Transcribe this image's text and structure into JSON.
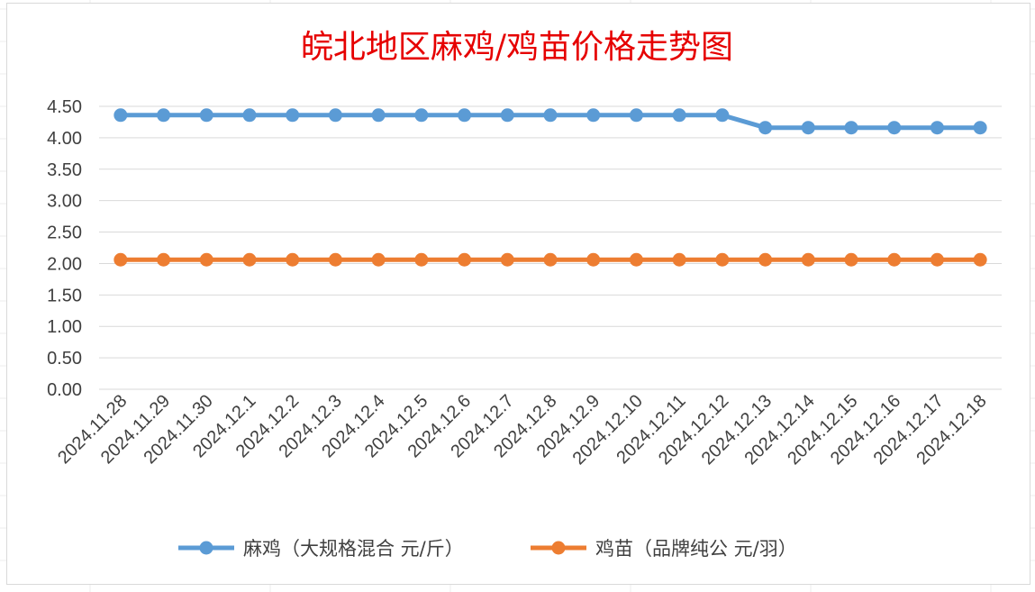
{
  "chart_data": {
    "type": "line",
    "title": "皖北地区麻鸡/鸡苗价格走势图",
    "x": [
      "2024.11.28",
      "2024.11.29",
      "2024.11.30",
      "2024.12.1",
      "2024.12.2",
      "2024.12.3",
      "2024.12.4",
      "2024.12.5",
      "2024.12.6",
      "2024.12.7",
      "2024.12.8",
      "2024.12.9",
      "2024.12.10",
      "2024.12.11",
      "2024.12.12",
      "2024.12.13",
      "2024.12.14",
      "2024.12.15",
      "2024.12.16",
      "2024.12.17",
      "2024.12.18"
    ],
    "yticks": [
      "0.00",
      "0.50",
      "1.00",
      "1.50",
      "2.00",
      "2.50",
      "3.00",
      "3.50",
      "4.00",
      "4.50"
    ],
    "ylim": [
      0,
      4.5
    ],
    "grid": true,
    "legend_position": "bottom",
    "series": [
      {
        "name": "麻鸡（大规格混合 元/斤）",
        "color": "#5b9bd5",
        "values": [
          4.36,
          4.36,
          4.36,
          4.36,
          4.36,
          4.36,
          4.36,
          4.36,
          4.36,
          4.36,
          4.36,
          4.36,
          4.36,
          4.36,
          4.36,
          4.16,
          4.16,
          4.16,
          4.16,
          4.16,
          4.16
        ]
      },
      {
        "name": "鸡苗（品牌纯公 元/羽）",
        "color": "#ed7d31",
        "values": [
          2.06,
          2.06,
          2.06,
          2.06,
          2.06,
          2.06,
          2.06,
          2.06,
          2.06,
          2.06,
          2.06,
          2.06,
          2.06,
          2.06,
          2.06,
          2.06,
          2.06,
          2.06,
          2.06,
          2.06,
          2.06
        ]
      }
    ]
  }
}
